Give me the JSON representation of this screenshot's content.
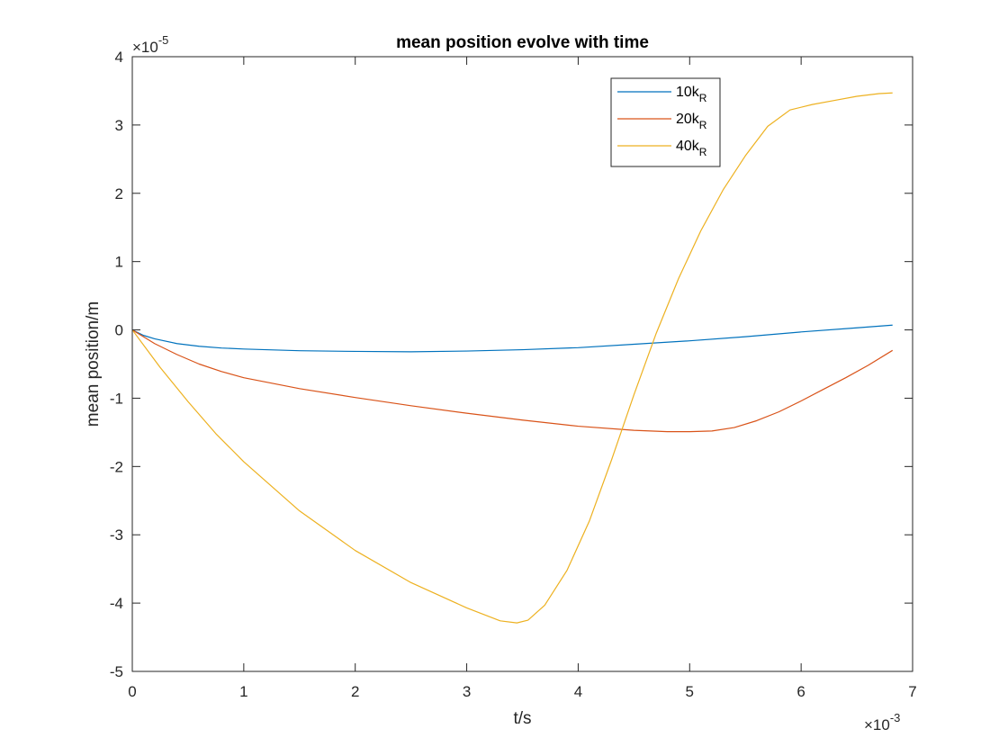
{
  "chart_data": {
    "type": "line",
    "title": "mean position evolve with time",
    "xlabel": "t/s",
    "ylabel": "mean position/m",
    "x_exponent_label": "×10",
    "x_exponent_power": "-3",
    "y_exponent_label": "×10",
    "y_exponent_power": "-5",
    "xlim": [
      0,
      7
    ],
    "ylim": [
      -5,
      4
    ],
    "xticks": [
      0,
      1,
      2,
      3,
      4,
      5,
      6,
      7
    ],
    "xtick_labels": [
      "0",
      "1",
      "2",
      "3",
      "4",
      "5",
      "6",
      "7"
    ],
    "yticks": [
      -5,
      -4,
      -3,
      -2,
      -1,
      0,
      1,
      2,
      3,
      4
    ],
    "ytick_labels": [
      "-5",
      "-4",
      "-3",
      "-2",
      "-1",
      "0",
      "1",
      "2",
      "3",
      "4"
    ],
    "grid": false,
    "legend_position": "top-right",
    "series": [
      {
        "name": "10k",
        "subscript": "R",
        "color": "#0072BD",
        "x": [
          0,
          0.1,
          0.2,
          0.4,
          0.6,
          0.8,
          1.0,
          1.5,
          2.0,
          2.5,
          3.0,
          3.5,
          4.0,
          4.5,
          5.0,
          5.5,
          6.0,
          6.5,
          6.82
        ],
        "y": [
          0,
          -0.08,
          -0.13,
          -0.2,
          -0.24,
          -0.265,
          -0.28,
          -0.305,
          -0.315,
          -0.32,
          -0.31,
          -0.29,
          -0.26,
          -0.21,
          -0.16,
          -0.1,
          -0.03,
          0.03,
          0.07
        ]
      },
      {
        "name": "20k",
        "subscript": "R",
        "color": "#D95319",
        "x": [
          0,
          0.1,
          0.2,
          0.4,
          0.6,
          0.8,
          1.0,
          1.5,
          2.0,
          2.5,
          3.0,
          3.5,
          4.0,
          4.5,
          4.8,
          5.0,
          5.2,
          5.4,
          5.6,
          5.8,
          6.0,
          6.2,
          6.4,
          6.6,
          6.82
        ],
        "y": [
          0,
          -0.1,
          -0.2,
          -0.36,
          -0.5,
          -0.61,
          -0.7,
          -0.86,
          -0.99,
          -1.11,
          -1.22,
          -1.32,
          -1.41,
          -1.47,
          -1.49,
          -1.49,
          -1.48,
          -1.43,
          -1.33,
          -1.2,
          -1.04,
          -0.87,
          -0.7,
          -0.52,
          -0.3
        ]
      },
      {
        "name": "40k",
        "subscript": "R",
        "color": "#EDB120",
        "x": [
          0,
          0.25,
          0.5,
          0.75,
          1.0,
          1.5,
          2.0,
          2.5,
          3.0,
          3.3,
          3.45,
          3.55,
          3.7,
          3.9,
          4.1,
          4.3,
          4.5,
          4.7,
          4.9,
          5.1,
          5.3,
          5.5,
          5.7,
          5.9,
          6.1,
          6.3,
          6.5,
          6.7,
          6.82
        ],
        "y": [
          0,
          -0.55,
          -1.05,
          -1.52,
          -1.93,
          -2.65,
          -3.23,
          -3.7,
          -4.07,
          -4.26,
          -4.29,
          -4.25,
          -4.03,
          -3.52,
          -2.8,
          -1.9,
          -0.95,
          -0.05,
          0.75,
          1.45,
          2.05,
          2.55,
          2.98,
          3.22,
          3.3,
          3.36,
          3.42,
          3.46,
          3.47
        ]
      }
    ]
  }
}
